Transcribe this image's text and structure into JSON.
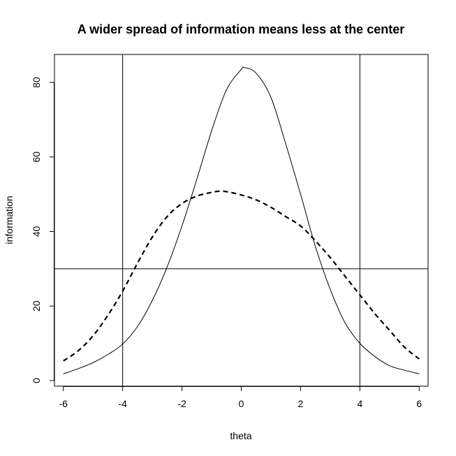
{
  "chart_data": {
    "type": "line",
    "title": "A wider spread of information means less at the center",
    "xlabel": "theta",
    "ylabel": "information",
    "xlim": [
      -6.3,
      6.3
    ],
    "ylim": [
      -1.5,
      87.5
    ],
    "x_ticks": [
      -6,
      -4,
      -2,
      0,
      2,
      4,
      6
    ],
    "y_ticks": [
      0,
      20,
      40,
      60,
      80
    ],
    "x_tick_labels": [
      "-6",
      "-4",
      "-2",
      "0",
      "2",
      "4",
      "6"
    ],
    "y_tick_labels": [
      "0",
      "20",
      "40",
      "60",
      "80"
    ],
    "grid": false,
    "series": [
      {
        "style": "solid",
        "x": [
          -6,
          -5.5,
          -5,
          -4.5,
          -4,
          -3.5,
          -3,
          -2.5,
          -2,
          -1.5,
          -1,
          -0.5,
          0,
          0.1,
          0.5,
          1,
          1.5,
          2,
          2.5,
          3,
          3.5,
          4,
          4.5,
          5,
          5.5,
          6
        ],
        "y": [
          1.8,
          3.2,
          4.8,
          7.0,
          9.8,
          14.5,
          21.5,
          30.5,
          41.5,
          54.0,
          67.0,
          78.0,
          83.5,
          84.0,
          82.5,
          76.0,
          63.5,
          50.0,
          36.0,
          24.5,
          15.5,
          10.0,
          6.5,
          4.0,
          2.8,
          1.8
        ]
      },
      {
        "style": "dashed",
        "x": [
          -6,
          -5.5,
          -5,
          -4.5,
          -4,
          -3.5,
          -3,
          -2.5,
          -2,
          -1.5,
          -1,
          -0.6,
          0,
          0.5,
          1,
          1.5,
          2,
          2.5,
          3,
          3.5,
          4,
          4.5,
          5,
          5.5,
          6
        ],
        "y": [
          5.3,
          8.0,
          12.0,
          17.5,
          24.0,
          31.5,
          38.5,
          44.0,
          47.5,
          49.5,
          50.5,
          50.8,
          49.8,
          48.5,
          46.5,
          44.0,
          41.5,
          37.5,
          33.0,
          28.0,
          23.0,
          18.0,
          13.5,
          9.0,
          5.8
        ]
      }
    ],
    "vlines": [
      -4,
      4
    ],
    "hlines": [
      30
    ]
  }
}
